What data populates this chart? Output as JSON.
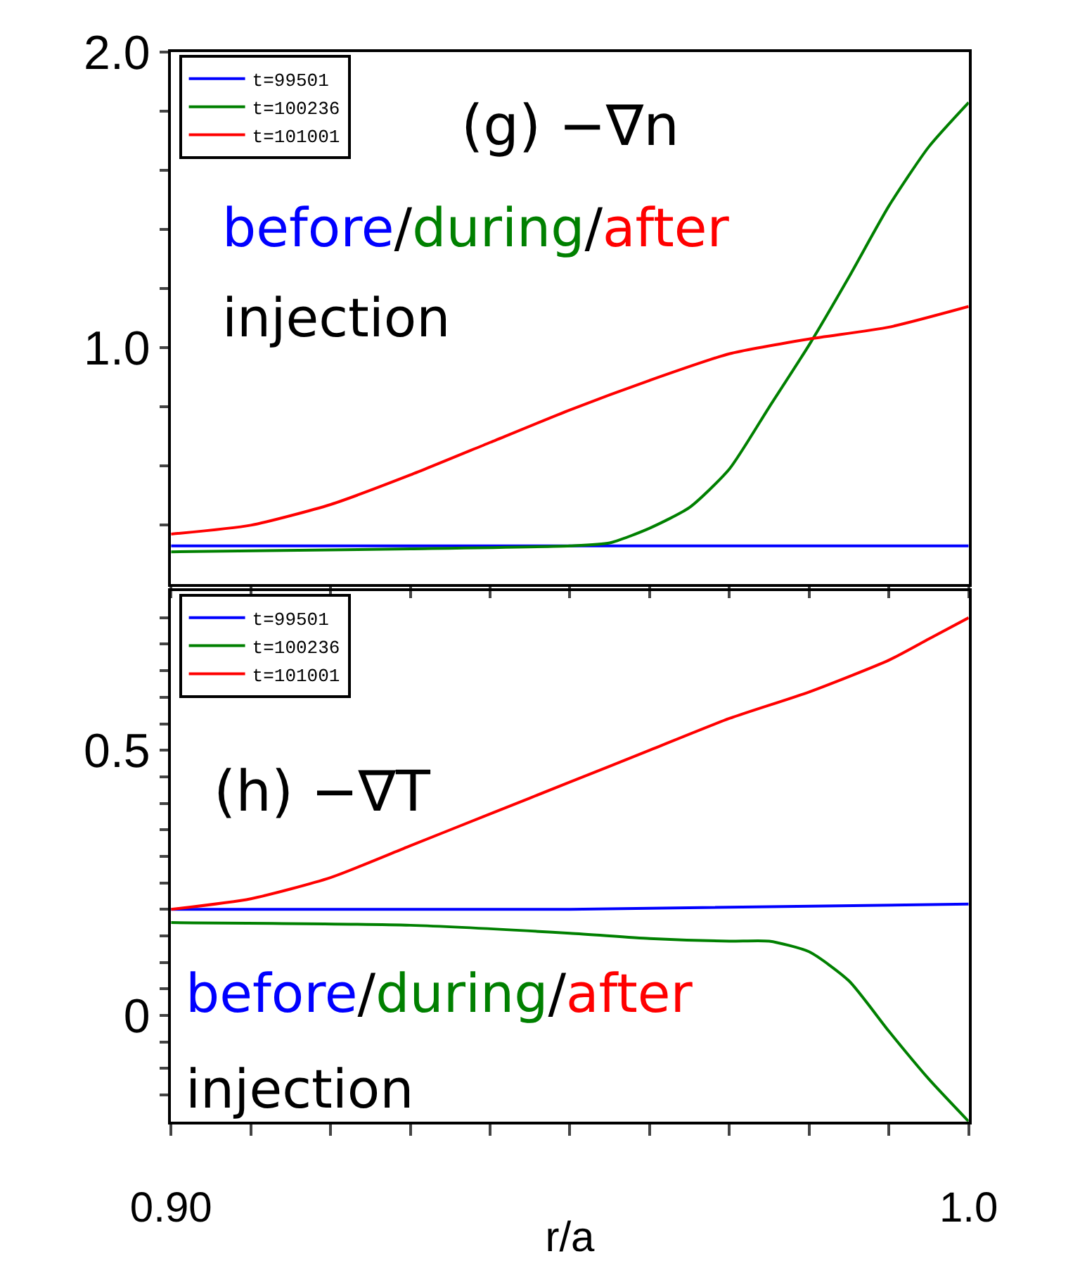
{
  "chart_data": [
    {
      "type": "line",
      "xlim": [
        0.9,
        1.0
      ],
      "xticks": [
        {
          "value": 0.9,
          "label": null
        },
        {
          "value": 0.91,
          "label": null
        },
        {
          "value": 0.92,
          "label": null
        },
        {
          "value": 0.93,
          "label": null
        },
        {
          "value": 0.94,
          "label": null
        },
        {
          "value": 0.95,
          "label": null
        },
        {
          "value": 0.96,
          "label": null
        },
        {
          "value": 0.97,
          "label": null
        },
        {
          "value": 0.98,
          "label": null
        },
        {
          "value": 0.99,
          "label": null
        },
        {
          "value": 1.0,
          "label": null
        }
      ],
      "ylim": [
        0.2,
        2.0
      ],
      "yticks": [
        {
          "value": 0.4,
          "label": null
        },
        {
          "value": 0.6,
          "label": null
        },
        {
          "value": 0.8,
          "label": null
        },
        {
          "value": 1.0,
          "label": "1.0"
        },
        {
          "value": 1.2,
          "label": null
        },
        {
          "value": 1.4,
          "label": null
        },
        {
          "value": 1.6,
          "label": null
        },
        {
          "value": 1.8,
          "label": null
        },
        {
          "value": 2.0,
          "label": "2.0"
        }
      ],
      "tick_labels": "y",
      "legend": "top left",
      "marker": "none",
      "line_style": "solid",
      "grid": false,
      "annotations": [
        "(g) −∇n",
        "before/during/after",
        "injection"
      ],
      "series": [
        {
          "name": "t=99501",
          "color": "#0000ff",
          "x": [
            0.9,
            0.95,
            1.0
          ],
          "values": [
            0.33,
            0.33,
            0.33
          ]
        },
        {
          "name": "t=100236",
          "color": "#008000",
          "x": [
            0.9,
            0.93,
            0.95,
            0.955,
            0.96,
            0.965,
            0.97,
            0.975,
            0.98,
            0.985,
            0.99,
            0.995,
            1.0
          ],
          "values": [
            0.31,
            0.32,
            0.33,
            0.34,
            0.39,
            0.46,
            0.59,
            0.8,
            1.01,
            1.24,
            1.48,
            1.68,
            1.83
          ]
        },
        {
          "name": "t=101001",
          "color": "#ff0000",
          "x": [
            0.9,
            0.91,
            0.92,
            0.93,
            0.94,
            0.95,
            0.96,
            0.97,
            0.98,
            0.99,
            1.0
          ],
          "values": [
            0.37,
            0.4,
            0.47,
            0.57,
            0.68,
            0.79,
            0.89,
            0.98,
            1.03,
            1.07,
            1.14
          ]
        }
      ]
    },
    {
      "type": "line",
      "xlabel": "r/a",
      "xlim": [
        0.9,
        1.0
      ],
      "xticks": [
        {
          "value": 0.9,
          "label": "0.90"
        },
        {
          "value": 0.91,
          "label": null
        },
        {
          "value": 0.92,
          "label": null
        },
        {
          "value": 0.93,
          "label": null
        },
        {
          "value": 0.94,
          "label": null
        },
        {
          "value": 0.95,
          "label": null
        },
        {
          "value": 0.96,
          "label": null
        },
        {
          "value": 0.97,
          "label": null
        },
        {
          "value": 0.98,
          "label": null
        },
        {
          "value": 0.99,
          "label": null
        },
        {
          "value": 1.0,
          "label": "1.0"
        }
      ],
      "ylim": [
        -0.2,
        0.8
      ],
      "yticks": [
        {
          "value": -0.15,
          "label": null
        },
        {
          "value": -0.1,
          "label": null
        },
        {
          "value": -0.05,
          "label": null
        },
        0,
        {
          "value": 0.05,
          "label": null
        },
        {
          "value": 0.1,
          "label": null
        },
        {
          "value": 0.15,
          "label": null
        },
        {
          "value": 0.2,
          "label": null
        },
        {
          "value": 0.25,
          "label": null
        },
        {
          "value": 0.3,
          "label": null
        },
        {
          "value": 0.35,
          "label": null
        },
        {
          "value": 0.4,
          "label": null
        },
        {
          "value": 0.45,
          "label": null
        },
        0.5,
        {
          "value": 0.55,
          "label": null
        },
        {
          "value": 0.6,
          "label": null
        },
        {
          "value": 0.65,
          "label": null
        },
        {
          "value": 0.7,
          "label": null
        },
        {
          "value": 0.75,
          "label": null
        }
      ],
      "legend": "top left",
      "marker": "none",
      "line_style": "solid",
      "grid": false,
      "annotations": [
        "(h) −∇T",
        "before/during/after",
        "injection"
      ],
      "series": [
        {
          "name": "t=99501",
          "color": "#0000ff",
          "x": [
            0.9,
            0.95,
            1.0
          ],
          "values": [
            0.2,
            0.2,
            0.21
          ]
        },
        {
          "name": "t=100236",
          "color": "#008000",
          "x": [
            0.9,
            0.93,
            0.95,
            0.96,
            0.97,
            0.975,
            0.98,
            0.985,
            0.99,
            0.995,
            1.0
          ],
          "values": [
            0.175,
            0.17,
            0.155,
            0.145,
            0.14,
            0.14,
            0.12,
            0.065,
            -0.03,
            -0.12,
            -0.2
          ]
        },
        {
          "name": "t=101001",
          "color": "#ff0000",
          "x": [
            0.9,
            0.91,
            0.92,
            0.93,
            0.94,
            0.95,
            0.96,
            0.97,
            0.98,
            0.99,
            0.995,
            1.0
          ],
          "values": [
            0.2,
            0.22,
            0.26,
            0.32,
            0.38,
            0.44,
            0.5,
            0.56,
            0.61,
            0.67,
            0.71,
            0.75
          ]
        }
      ]
    }
  ]
}
